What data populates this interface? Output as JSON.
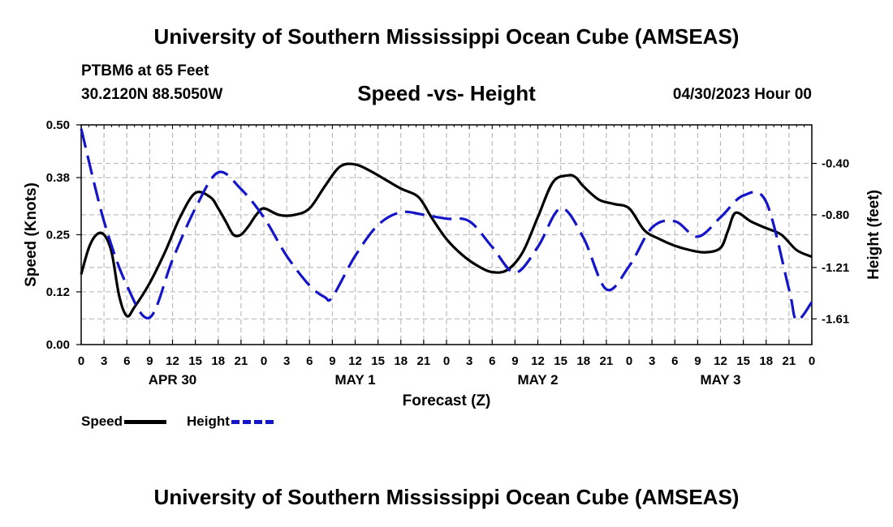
{
  "header": {
    "title": "University of Southern Mississippi Ocean Cube (AMSEAS)",
    "station": "PTBM6 at 65 Feet",
    "coords": "30.2120N  88.5050W",
    "subtitle": "Speed -vs- Height",
    "datetime": "04/30/2023 Hour 00"
  },
  "footer": {
    "title": "University of Southern Mississippi Ocean Cube (AMSEAS)"
  },
  "legend": {
    "speed": "Speed",
    "height": "Height"
  },
  "colors": {
    "speed": "#000000",
    "height": "#1414c8",
    "grid": "#bbbbbb"
  },
  "chart_data": {
    "type": "line",
    "xlabel": "Forecast (Z)",
    "ylabel_left": "Speed (Knots)",
    "ylabel_right": "Height (feet)",
    "x_range_hours": [
      0,
      96
    ],
    "x_tick_step_hours": 3,
    "x_tick_labels": [
      "0",
      "3",
      "6",
      "9",
      "12",
      "15",
      "18",
      "21",
      "0",
      "3",
      "6",
      "9",
      "12",
      "15",
      "18",
      "21",
      "0",
      "3",
      "6",
      "9",
      "12",
      "15",
      "18",
      "21",
      "0",
      "3",
      "6",
      "9",
      "12",
      "15",
      "18",
      "21",
      "0"
    ],
    "day_labels": [
      {
        "label": "APR 30",
        "hour": 12
      },
      {
        "label": "MAY 1",
        "hour": 36
      },
      {
        "label": "MAY 2",
        "hour": 60
      },
      {
        "label": "MAY 3",
        "hour": 84
      }
    ],
    "left_axis": {
      "range": [
        0,
        0.5
      ],
      "ticks": [
        0,
        0.12,
        0.25,
        0.38,
        0.5
      ],
      "tick_labels": [
        "0.00",
        "0.12",
        "0.25",
        "0.38",
        "0.50"
      ]
    },
    "right_axis": {
      "range": [
        -1.81,
        -0.1
      ],
      "ticks": [
        -0.4,
        -0.8,
        -1.21,
        -1.61
      ],
      "tick_labels": [
        "-0.40",
        "-0.80",
        "-1.21",
        "-1.61"
      ]
    },
    "series": [
      {
        "name": "Speed",
        "axis": "left",
        "style": "solid",
        "x": [
          0,
          1,
          2,
          3,
          4,
          5,
          6,
          7,
          9,
          11,
          13,
          15,
          17,
          18,
          19,
          20,
          21,
          22,
          23,
          24,
          26,
          28,
          30,
          32,
          34,
          36,
          38,
          40,
          42,
          44,
          45,
          46,
          48,
          50,
          52,
          54,
          56,
          58,
          60,
          62,
          64,
          65,
          66,
          68,
          70,
          72,
          74,
          76,
          78,
          80,
          82,
          84,
          85,
          86,
          88,
          90,
          92,
          94,
          96
        ],
        "values": [
          0.16,
          0.22,
          0.25,
          0.25,
          0.21,
          0.11,
          0.065,
          0.085,
          0.14,
          0.21,
          0.29,
          0.345,
          0.335,
          0.31,
          0.28,
          0.25,
          0.25,
          0.27,
          0.295,
          0.31,
          0.295,
          0.295,
          0.31,
          0.36,
          0.405,
          0.41,
          0.395,
          0.375,
          0.355,
          0.34,
          0.32,
          0.29,
          0.24,
          0.205,
          0.18,
          0.165,
          0.17,
          0.21,
          0.29,
          0.37,
          0.385,
          0.38,
          0.36,
          0.33,
          0.32,
          0.31,
          0.26,
          0.24,
          0.225,
          0.215,
          0.21,
          0.22,
          0.26,
          0.3,
          0.28,
          0.265,
          0.25,
          0.215,
          0.2
        ]
      },
      {
        "name": "Height",
        "axis": "right",
        "style": "dashed",
        "x": [
          0,
          3,
          6,
          9,
          12,
          15,
          18,
          21,
          24,
          27,
          30,
          32,
          33,
          36,
          39,
          42,
          45,
          48,
          51,
          54,
          57,
          60,
          63,
          66,
          69,
          72,
          75,
          78,
          81,
          84,
          87,
          90,
          93,
          94,
          96
        ],
        "values": [
          -0.13,
          -0.85,
          -1.35,
          -1.6,
          -1.15,
          -0.75,
          -0.47,
          -0.6,
          -0.82,
          -1.12,
          -1.35,
          -1.44,
          -1.44,
          -1.12,
          -0.88,
          -0.78,
          -0.8,
          -0.83,
          -0.85,
          -1.05,
          -1.25,
          -1.05,
          -0.75,
          -0.98,
          -1.38,
          -1.2,
          -0.9,
          -0.85,
          -0.97,
          -0.82,
          -0.65,
          -0.7,
          -1.38,
          -1.62,
          -1.48
        ]
      }
    ]
  }
}
